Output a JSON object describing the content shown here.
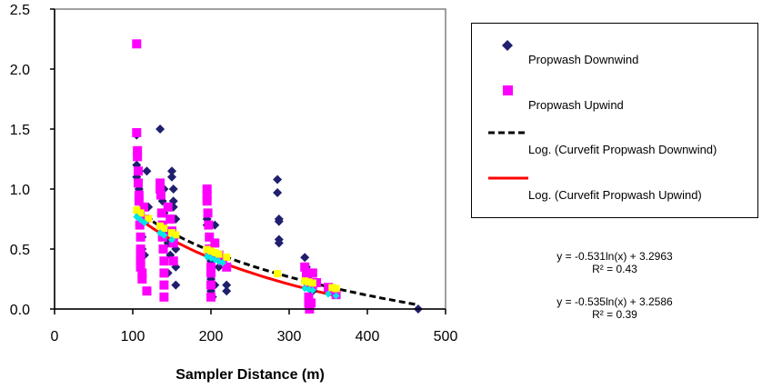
{
  "chart_data": {
    "type": "scatter",
    "xlabel": "Sampler Distance (m)",
    "ylabel": "",
    "xlim": [
      0,
      500
    ],
    "ylim": [
      0,
      2.5
    ],
    "x_ticks": [
      "0",
      "100",
      "200",
      "300",
      "400",
      "500"
    ],
    "y_ticks": [
      "0.0",
      "0.5",
      "1.0",
      "1.5",
      "2.0",
      "2.5"
    ],
    "grid": false,
    "legend_position": "right",
    "series": [
      {
        "name": "Propwash Downwind",
        "marker": "diamond",
        "color": "#1f1f6e",
        "points": [
          [
            105,
            1.45
          ],
          [
            105,
            1.2
          ],
          [
            105,
            1.1
          ],
          [
            108,
            1.0
          ],
          [
            108,
            0.9
          ],
          [
            110,
            0.8
          ],
          [
            110,
            0.7
          ],
          [
            112,
            0.6
          ],
          [
            112,
            0.5
          ],
          [
            115,
            0.45
          ],
          [
            118,
            1.15
          ],
          [
            120,
            0.85
          ],
          [
            120,
            0.75
          ],
          [
            135,
            1.5
          ],
          [
            138,
            0.9
          ],
          [
            140,
            1.0
          ],
          [
            140,
            0.8
          ],
          [
            142,
            0.65
          ],
          [
            145,
            0.55
          ],
          [
            145,
            0.3
          ],
          [
            148,
            0.45
          ],
          [
            150,
            1.15
          ],
          [
            150,
            1.1
          ],
          [
            152,
            1.0
          ],
          [
            152,
            0.9
          ],
          [
            152,
            0.85
          ],
          [
            155,
            0.75
          ],
          [
            155,
            0.6
          ],
          [
            155,
            0.5
          ],
          [
            155,
            0.35
          ],
          [
            155,
            0.2
          ],
          [
            195,
            0.9
          ],
          [
            195,
            0.75
          ],
          [
            195,
            0.7
          ],
          [
            198,
            0.6
          ],
          [
            198,
            0.5
          ],
          [
            200,
            0.45
          ],
          [
            200,
            0.4
          ],
          [
            200,
            0.3
          ],
          [
            200,
            0.25
          ],
          [
            200,
            0.15
          ],
          [
            202,
            0.1
          ],
          [
            205,
            0.7
          ],
          [
            205,
            0.2
          ],
          [
            210,
            0.35
          ],
          [
            220,
            0.2
          ],
          [
            220,
            0.15
          ],
          [
            285,
            1.08
          ],
          [
            285,
            0.97
          ],
          [
            287,
            0.75
          ],
          [
            287,
            0.73
          ],
          [
            287,
            0.58
          ],
          [
            287,
            0.55
          ],
          [
            320,
            0.43
          ],
          [
            322,
            0.35
          ],
          [
            325,
            0.3
          ],
          [
            325,
            0.25
          ],
          [
            328,
            0.2
          ],
          [
            330,
            0.15
          ],
          [
            355,
            0.18
          ],
          [
            360,
            0.12
          ],
          [
            465,
            0.0
          ]
        ]
      },
      {
        "name": "Propwash Upwind",
        "marker": "square",
        "color": "#ff00ff",
        "points": [
          [
            105,
            2.21
          ],
          [
            105,
            1.47
          ],
          [
            106,
            1.32
          ],
          [
            106,
            1.27
          ],
          [
            107,
            1.15
          ],
          [
            107,
            1.05
          ],
          [
            108,
            0.95
          ],
          [
            108,
            0.9
          ],
          [
            109,
            0.8
          ],
          [
            109,
            0.7
          ],
          [
            110,
            0.6
          ],
          [
            110,
            0.5
          ],
          [
            110,
            0.45
          ],
          [
            110,
            0.4
          ],
          [
            110,
            0.35
          ],
          [
            112,
            0.3
          ],
          [
            112,
            0.25
          ],
          [
            114,
            0.85
          ],
          [
            115,
            0.75
          ],
          [
            118,
            0.15
          ],
          [
            135,
            1.05
          ],
          [
            135,
            1.0
          ],
          [
            136,
            0.95
          ],
          [
            137,
            0.8
          ],
          [
            138,
            0.7
          ],
          [
            138,
            0.6
          ],
          [
            139,
            0.5
          ],
          [
            140,
            0.4
          ],
          [
            140,
            0.3
          ],
          [
            140,
            0.2
          ],
          [
            140,
            0.1
          ],
          [
            145,
            0.85
          ],
          [
            148,
            0.75
          ],
          [
            150,
            0.65
          ],
          [
            152,
            0.55
          ],
          [
            152,
            0.4
          ],
          [
            195,
            1.0
          ],
          [
            195,
            0.95
          ],
          [
            195,
            0.9
          ],
          [
            196,
            0.8
          ],
          [
            197,
            0.7
          ],
          [
            198,
            0.6
          ],
          [
            198,
            0.5
          ],
          [
            199,
            0.45
          ],
          [
            200,
            0.35
          ],
          [
            200,
            0.3
          ],
          [
            200,
            0.2
          ],
          [
            200,
            0.1
          ],
          [
            205,
            0.55
          ],
          [
            210,
            0.45
          ],
          [
            215,
            0.4
          ],
          [
            220,
            0.35
          ],
          [
            320,
            0.35
          ],
          [
            322,
            0.3
          ],
          [
            323,
            0.25
          ],
          [
            324,
            0.2
          ],
          [
            325,
            0.1
          ],
          [
            325,
            0.05
          ],
          [
            326,
            0.0
          ],
          [
            328,
            0.05
          ],
          [
            330,
            0.3
          ],
          [
            330,
            0.2
          ],
          [
            335,
            0.22
          ],
          [
            350,
            0.18
          ],
          [
            358,
            0.15
          ],
          [
            360,
            0.12
          ]
        ]
      },
      {
        "name": "Log. (Curvefit Propwash Downwind)",
        "line": "dashed",
        "color": "#000000",
        "a": -0.531,
        "b": 3.2963,
        "x_range": [
          105,
          465
        ]
      },
      {
        "name": "Log. (Curvefit Propwash Upwind)",
        "line": "solid",
        "color": "#ff0000",
        "a": -0.535,
        "b": 3.2586,
        "x_range": [
          105,
          360
        ]
      }
    ],
    "curvefit_markers": {
      "downwind_color": "#ffff00",
      "upwind_color": "#00e5e5",
      "downwind_x": [
        105,
        110,
        120,
        135,
        140,
        150,
        155,
        195,
        200,
        205,
        210,
        220,
        285,
        320,
        325,
        330,
        355,
        360
      ],
      "upwind_x": [
        105,
        110,
        115,
        135,
        140,
        150,
        195,
        200,
        205,
        210,
        215,
        320,
        325,
        330,
        350,
        360
      ]
    },
    "annotations": [
      {
        "equation": "y = -0.531ln(x) + 3.2963",
        "r2": "R² = 0.43"
      },
      {
        "equation": "y = -0.535ln(x) + 3.2586",
        "r2": "R² = 0.39"
      }
    ]
  }
}
